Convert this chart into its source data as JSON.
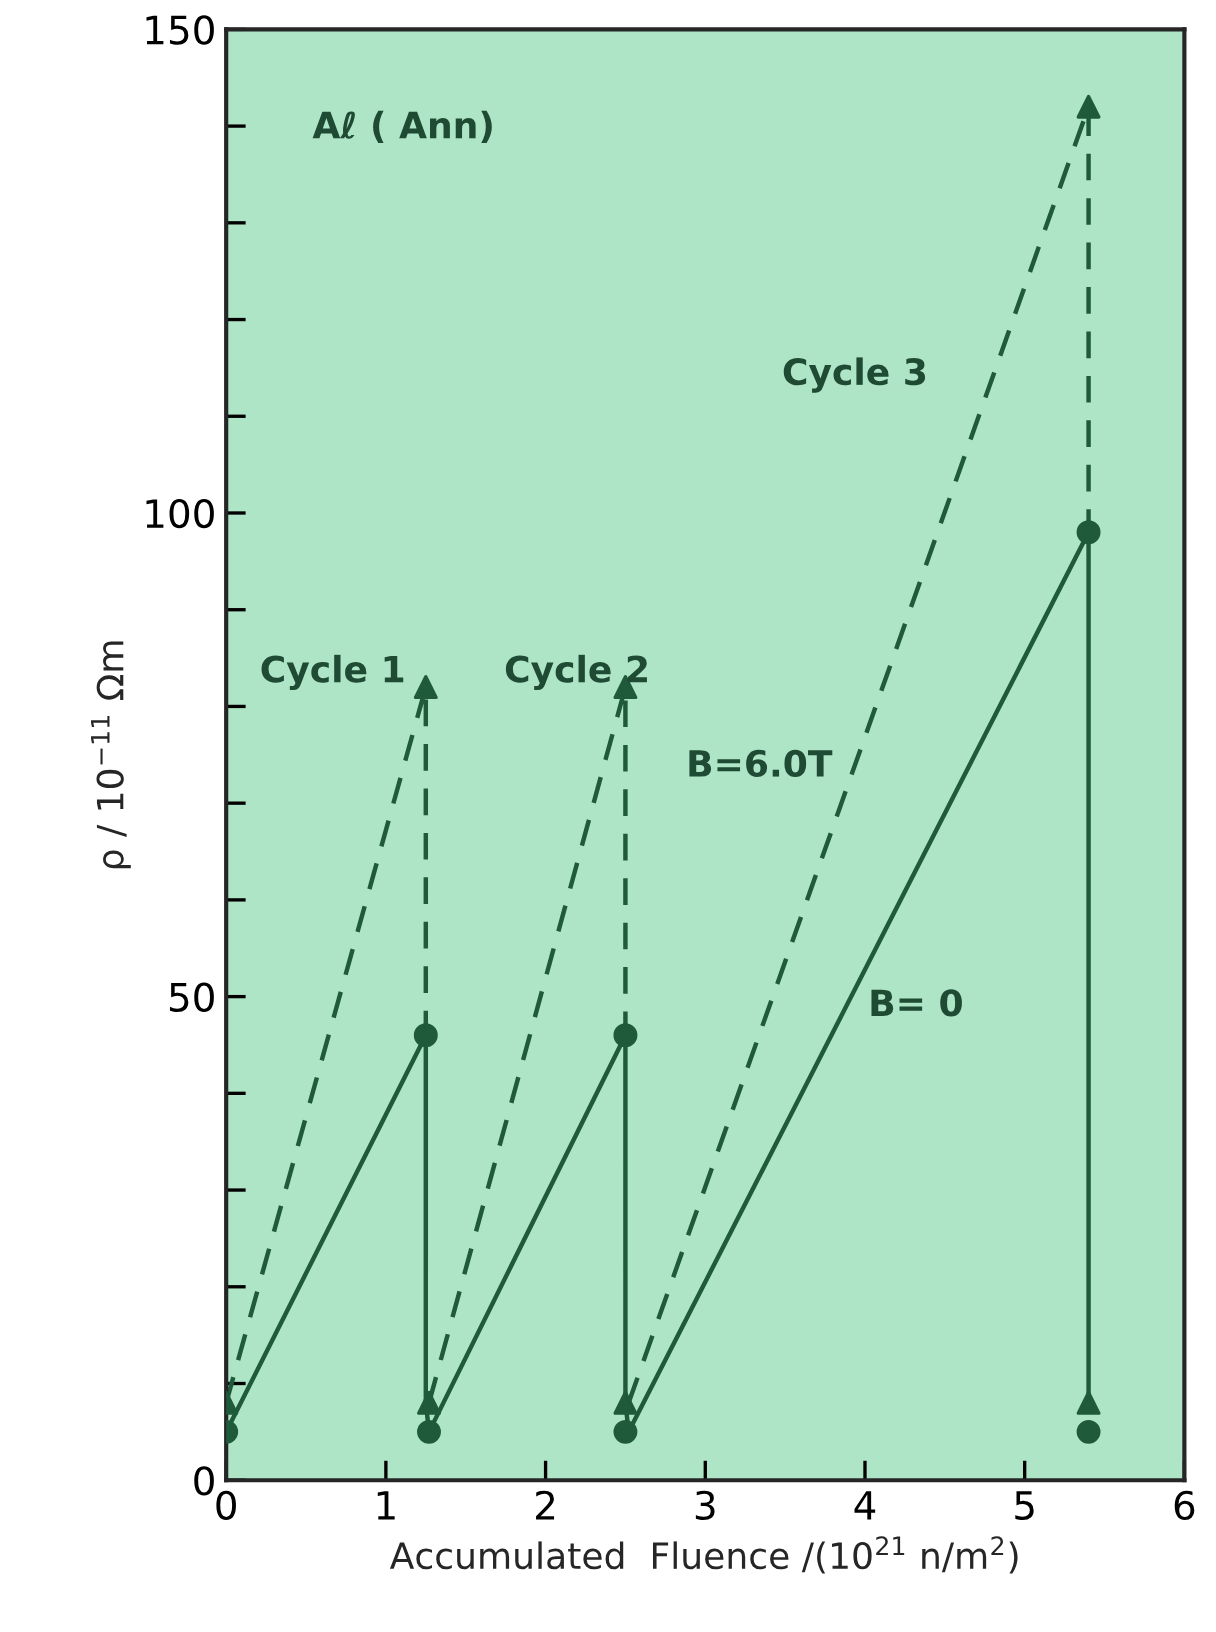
{
  "chart_data": {
    "type": "line",
    "xlabel": "Accumulated  Fluence /(10$^{21}$ n/m$^{2}$)",
    "ylabel": "ρ / 10$^{−11}$ Ωm",
    "xlim": [
      0,
      6
    ],
    "ylim": [
      0,
      150
    ],
    "xticks": [
      0,
      1,
      2,
      3,
      4,
      5,
      6
    ],
    "yticks": [
      0,
      {
        "value": 10,
        "label": null
      },
      {
        "value": 20,
        "label": null
      },
      {
        "value": 30,
        "label": null
      },
      {
        "value": 40,
        "label": null
      },
      50,
      {
        "value": 60,
        "label": null
      },
      {
        "value": 70,
        "label": null
      },
      {
        "value": 80,
        "label": null
      },
      {
        "value": 90,
        "label": null
      },
      100,
      {
        "value": 110,
        "label": null
      },
      {
        "value": 120,
        "label": null
      },
      {
        "value": 130,
        "label": null
      },
      {
        "value": 140,
        "label": null
      },
      150
    ],
    "grid": false,
    "legend": false,
    "series": [
      {
        "type": "line",
        "color": "#1f5a3a",
        "line_style": "solid",
        "marker": "none",
        "x": [
          0,
          1.25,
          1.25,
          1.27,
          2.5,
          2.5,
          2.52,
          5.4,
          5.4
        ],
        "values": [
          5,
          46,
          8,
          5,
          46,
          8,
          5,
          98,
          8
        ]
      },
      {
        "type": "line",
        "color": "#1f5a3a",
        "line_style": "dashed",
        "marker": "none",
        "x": [
          0,
          1.25,
          1.25,
          null,
          1.27,
          2.5,
          2.5,
          null,
          2.52,
          5.4,
          5.4
        ],
        "values": [
          8,
          82,
          46,
          null,
          8,
          82,
          46,
          null,
          8,
          142,
          98
        ]
      },
      {
        "type": "scatter",
        "color": "#1f5a3a",
        "marker": "triangle",
        "x": [
          1.25,
          2.5,
          5.4
        ],
        "values": [
          82,
          82,
          142
        ]
      },
      {
        "type": "scatter",
        "color": "#1f5a3a",
        "marker": "circle",
        "x": [
          1.25,
          2.5,
          5.4
        ],
        "values": [
          46,
          46,
          98
        ]
      },
      {
        "type": "scatter",
        "color": "#1f5a3a",
        "marker": "triangle",
        "x": [
          0,
          1.27,
          2.5,
          5.4
        ],
        "values": [
          8,
          8,
          8,
          8
        ]
      },
      {
        "type": "scatter",
        "color": "#1f5a3a",
        "marker": "circle",
        "x": [
          0,
          1.27,
          2.5,
          5.4
        ],
        "values": [
          5,
          5,
          5,
          5
        ]
      }
    ],
    "annotations": [
      "Aℓ ( Ann)",
      "Cycle 1",
      "Cycle 2",
      "Cycle 3",
      "B=6.0T",
      "B= 0"
    ]
  }
}
